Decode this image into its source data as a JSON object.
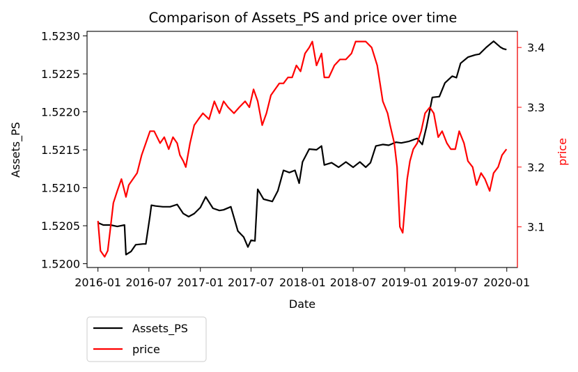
{
  "chart_data": {
    "type": "line",
    "title": "Comparison of Assets_PS and price over time",
    "xlabel": "Date",
    "ylabel_left": "Assets_PS",
    "ylabel_right": "price",
    "x_ticks": [
      "2016-01",
      "2016-07",
      "2017-01",
      "2017-07",
      "2018-01",
      "2018-07",
      "2019-01",
      "2019-07",
      "2020-01"
    ],
    "y_left_ticks": [
      "1.5200",
      "1.5205",
      "1.5210",
      "1.5215",
      "1.5220",
      "1.5225",
      "1.5230"
    ],
    "y_right_ticks": [
      "3.1",
      "3.2",
      "3.3",
      "3.4"
    ],
    "xlim": [
      "2015-11-23",
      "2020-02-08"
    ],
    "ylim_left": [
      1.51995,
      1.52306
    ],
    "ylim_right": [
      3.032,
      3.427
    ],
    "legend_placement": "below-left",
    "colors": {
      "Assets_PS": "#000000",
      "price": "#ff0000"
    },
    "series": [
      {
        "name": "Assets_PS",
        "axis": "left",
        "color": "#000000",
        "x": [
          "2016-01-01",
          "2016-01-20",
          "2016-02-15",
          "2016-03-10",
          "2016-04-05",
          "2016-04-10",
          "2016-04-28",
          "2016-05-15",
          "2016-06-10",
          "2016-06-20",
          "2016-07-05",
          "2016-07-10",
          "2016-07-25",
          "2016-08-20",
          "2016-09-15",
          "2016-10-10",
          "2016-11-01",
          "2016-11-20",
          "2016-12-10",
          "2017-01-01",
          "2017-01-20",
          "2017-02-15",
          "2017-03-10",
          "2017-03-25",
          "2017-04-20",
          "2017-05-15",
          "2017-06-05",
          "2017-06-20",
          "2017-07-01",
          "2017-07-15",
          "2017-07-25",
          "2017-08-15",
          "2017-09-15",
          "2017-10-05",
          "2017-10-25",
          "2017-11-15",
          "2017-12-05",
          "2017-12-20",
          "2018-01-01",
          "2018-01-25",
          "2018-02-20",
          "2018-03-10",
          "2018-03-20",
          "2018-04-15",
          "2018-05-10",
          "2018-06-05",
          "2018-07-01",
          "2018-07-25",
          "2018-08-15",
          "2018-09-01",
          "2018-09-20",
          "2018-10-15",
          "2018-11-05",
          "2018-12-01",
          "2018-12-20",
          "2019-01-15",
          "2019-02-15",
          "2019-03-05",
          "2019-03-20",
          "2019-04-10",
          "2019-05-05",
          "2019-05-25",
          "2019-06-20",
          "2019-07-05",
          "2019-07-20",
          "2019-08-15",
          "2019-09-10",
          "2019-09-25",
          "2019-10-20",
          "2019-11-15",
          "2019-12-10",
          "2019-12-20",
          "2019-12-31"
        ],
        "y": [
          1.52054,
          1.52051,
          1.52051,
          1.52049,
          1.52051,
          1.52012,
          1.52016,
          1.52025,
          1.52026,
          1.52026,
          1.52063,
          1.52077,
          1.52076,
          1.52075,
          1.52075,
          1.52078,
          1.52066,
          1.52062,
          1.52066,
          1.52074,
          1.52088,
          1.52073,
          1.5207,
          1.52071,
          1.52075,
          1.52043,
          1.52035,
          1.52022,
          1.52031,
          1.5203,
          1.52098,
          1.52085,
          1.52082,
          1.52096,
          1.52123,
          1.5212,
          1.52123,
          1.52106,
          1.52134,
          1.52151,
          1.5215,
          1.52155,
          1.5213,
          1.52133,
          1.52127,
          1.52134,
          1.52127,
          1.52134,
          1.52127,
          1.52133,
          1.52155,
          1.52157,
          1.52156,
          1.5216,
          1.52159,
          1.52161,
          1.52165,
          1.52157,
          1.5218,
          1.52219,
          1.5222,
          1.52238,
          1.52247,
          1.52245,
          1.52264,
          1.52272,
          1.52275,
          1.52276,
          1.52285,
          1.52293,
          1.52285,
          1.52283,
          1.52282
        ]
      },
      {
        "name": "price",
        "axis": "right",
        "color": "#ff0000",
        "x": [
          "2016-01-01",
          "2016-01-10",
          "2016-01-25",
          "2016-02-05",
          "2016-02-15",
          "2016-02-25",
          "2016-03-10",
          "2016-03-25",
          "2016-04-10",
          "2016-04-20",
          "2016-05-05",
          "2016-05-20",
          "2016-06-05",
          "2016-06-20",
          "2016-07-05",
          "2016-07-20",
          "2016-08-10",
          "2016-08-25",
          "2016-09-10",
          "2016-09-25",
          "2016-10-10",
          "2016-10-20",
          "2016-11-01",
          "2016-11-10",
          "2016-11-25",
          "2016-12-10",
          "2016-12-25",
          "2017-01-10",
          "2017-02-01",
          "2017-02-20",
          "2017-03-10",
          "2017-03-25",
          "2017-04-10",
          "2017-05-01",
          "2017-05-20",
          "2017-06-10",
          "2017-06-25",
          "2017-07-10",
          "2017-07-25",
          "2017-08-10",
          "2017-08-25",
          "2017-09-10",
          "2017-09-25",
          "2017-10-10",
          "2017-10-25",
          "2017-11-10",
          "2017-11-25",
          "2017-12-10",
          "2017-12-25",
          "2018-01-10",
          "2018-01-25",
          "2018-02-05",
          "2018-02-20",
          "2018-03-10",
          "2018-03-20",
          "2018-04-05",
          "2018-04-25",
          "2018-05-15",
          "2018-06-05",
          "2018-06-25",
          "2018-07-10",
          "2018-07-25",
          "2018-08-15",
          "2018-09-05",
          "2018-09-25",
          "2018-10-15",
          "2018-11-01",
          "2018-11-10",
          "2018-11-25",
          "2018-12-05",
          "2018-12-15",
          "2018-12-25",
          "2019-01-10",
          "2019-01-20",
          "2019-02-01",
          "2019-02-15",
          "2019-03-01",
          "2019-03-15",
          "2019-04-01",
          "2019-04-15",
          "2019-05-01",
          "2019-05-15",
          "2019-06-01",
          "2019-06-15",
          "2019-07-01",
          "2019-07-15",
          "2019-08-01",
          "2019-08-15",
          "2019-09-01",
          "2019-09-15",
          "2019-10-01",
          "2019-10-15",
          "2019-11-01",
          "2019-11-15",
          "2019-12-01",
          "2019-12-15",
          "2019-12-31"
        ],
        "y": [
          3.11,
          3.06,
          3.05,
          3.06,
          3.1,
          3.14,
          3.16,
          3.18,
          3.15,
          3.17,
          3.18,
          3.19,
          3.22,
          3.24,
          3.26,
          3.26,
          3.24,
          3.25,
          3.23,
          3.25,
          3.24,
          3.22,
          3.21,
          3.2,
          3.24,
          3.27,
          3.28,
          3.29,
          3.28,
          3.31,
          3.29,
          3.31,
          3.3,
          3.29,
          3.3,
          3.31,
          3.3,
          3.33,
          3.31,
          3.27,
          3.29,
          3.32,
          3.33,
          3.34,
          3.34,
          3.35,
          3.35,
          3.37,
          3.36,
          3.39,
          3.4,
          3.41,
          3.37,
          3.39,
          3.35,
          3.35,
          3.37,
          3.38,
          3.38,
          3.39,
          3.41,
          3.41,
          3.41,
          3.4,
          3.37,
          3.31,
          3.29,
          3.27,
          3.24,
          3.2,
          3.1,
          3.09,
          3.18,
          3.21,
          3.23,
          3.24,
          3.26,
          3.29,
          3.3,
          3.29,
          3.25,
          3.26,
          3.24,
          3.23,
          3.23,
          3.26,
          3.24,
          3.21,
          3.2,
          3.17,
          3.19,
          3.18,
          3.16,
          3.19,
          3.2,
          3.22,
          3.23
        ]
      }
    ]
  }
}
